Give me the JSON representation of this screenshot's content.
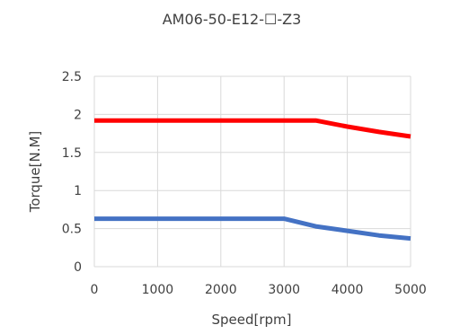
{
  "chart_data": {
    "type": "line",
    "title": "AM06-50-E12-☐-Z3",
    "xlabel": "Speed[rpm]",
    "ylabel": "Torque[N.M]",
    "xlim": [
      0,
      5000
    ],
    "ylim": [
      0,
      2.5
    ],
    "xticks": [
      "0",
      "1000",
      "2000",
      "3000",
      "4000",
      "5000"
    ],
    "yticks": [
      "0",
      "0.5",
      "1",
      "1.5",
      "2",
      "2.5"
    ],
    "grid": true,
    "legend": "none",
    "series": [
      {
        "color": "#ff0000",
        "points": [
          [
            0,
            1.92
          ],
          [
            3500,
            1.92
          ],
          [
            4000,
            1.84
          ],
          [
            4500,
            1.77
          ],
          [
            5000,
            1.71
          ]
        ]
      },
      {
        "color": "#4472c4",
        "points": [
          [
            0,
            0.63
          ],
          [
            3000,
            0.63
          ],
          [
            3500,
            0.53
          ],
          [
            4000,
            0.47
          ],
          [
            4500,
            0.41
          ],
          [
            5000,
            0.37
          ]
        ]
      }
    ]
  }
}
